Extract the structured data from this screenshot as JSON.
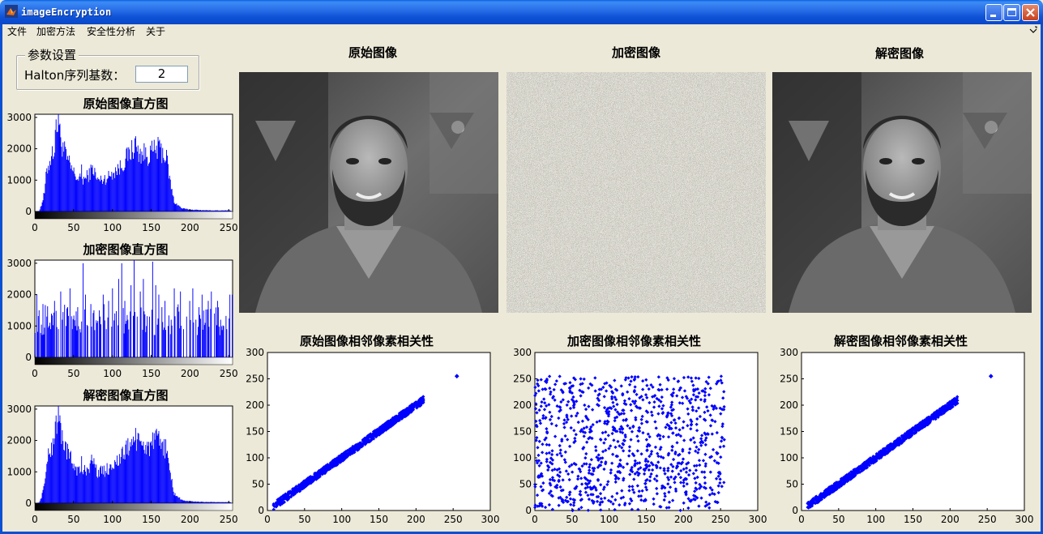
{
  "window": {
    "title": "imageEncryption",
    "controls": [
      "minimize",
      "maximize",
      "close"
    ]
  },
  "menu": {
    "items": [
      "文件",
      "加密方法",
      "安全性分析",
      "关于"
    ],
    "overflow_icon": "chevron-icon"
  },
  "params": {
    "legend": "参数设置",
    "halton_label": "Halton序列基数：",
    "halton_value": "2"
  },
  "images": {
    "original_title": "原始图像",
    "encrypted_title": "加密图像",
    "decrypted_title": "解密图像"
  },
  "colors": {
    "series": "#0000ff",
    "background": "#ece9d8",
    "titlebar": "#0a48c8"
  },
  "chart_data": [
    {
      "id": "hist-original",
      "type": "bar",
      "title": "原始图像直方图",
      "xlim": [
        0,
        255
      ],
      "ylim": [
        0,
        3100
      ],
      "xticks": [
        0,
        50,
        100,
        150,
        200,
        250
      ],
      "yticks": [
        0,
        1000,
        2000,
        3000
      ],
      "bins": 256,
      "envelope": [
        [
          0,
          0
        ],
        [
          5,
          20
        ],
        [
          8,
          200
        ],
        [
          12,
          600
        ],
        [
          15,
          1300
        ],
        [
          20,
          1700
        ],
        [
          25,
          2100
        ],
        [
          28,
          2700
        ],
        [
          30,
          2900
        ],
        [
          33,
          2300
        ],
        [
          38,
          1900
        ],
        [
          42,
          1600
        ],
        [
          48,
          1300
        ],
        [
          55,
          1050
        ],
        [
          60,
          1000
        ],
        [
          65,
          1050
        ],
        [
          70,
          1200
        ],
        [
          75,
          1400
        ],
        [
          80,
          1000
        ],
        [
          85,
          1000
        ],
        [
          95,
          1100
        ],
        [
          100,
          1250
        ],
        [
          110,
          1400
        ],
        [
          118,
          1700
        ],
        [
          124,
          1900
        ],
        [
          128,
          2100
        ],
        [
          132,
          1900
        ],
        [
          138,
          1850
        ],
        [
          145,
          1800
        ],
        [
          152,
          1900
        ],
        [
          158,
          2000
        ],
        [
          165,
          1900
        ],
        [
          170,
          1700
        ],
        [
          175,
          900
        ],
        [
          180,
          300
        ],
        [
          190,
          100
        ],
        [
          200,
          60
        ],
        [
          220,
          40
        ],
        [
          240,
          30
        ],
        [
          252,
          40
        ],
        [
          255,
          0
        ]
      ],
      "spikes": [
        [
          30,
          3100
        ],
        [
          32,
          2800
        ],
        [
          26,
          2600
        ],
        [
          60,
          1500
        ],
        [
          118,
          2000
        ],
        [
          130,
          2400
        ],
        [
          162,
          2050
        ]
      ]
    },
    {
      "id": "hist-encrypted",
      "type": "bar",
      "title": "加密图像直方图",
      "xlim": [
        0,
        255
      ],
      "ylim": [
        0,
        3100
      ],
      "xticks": [
        0,
        50,
        100,
        150,
        200,
        250
      ],
      "yticks": [
        0,
        1000,
        2000,
        3000
      ],
      "bins": 256,
      "baseline": 0,
      "spikes": [
        [
          2,
          2000
        ],
        [
          5,
          1500
        ],
        [
          10,
          1700
        ],
        [
          15,
          1300
        ],
        [
          18,
          1000
        ],
        [
          20,
          900
        ],
        [
          25,
          1800
        ],
        [
          30,
          900
        ],
        [
          33,
          2100
        ],
        [
          35,
          1200
        ],
        [
          40,
          1000
        ],
        [
          45,
          2200
        ],
        [
          48,
          900
        ],
        [
          52,
          1000
        ],
        [
          55,
          1600
        ],
        [
          58,
          900
        ],
        [
          62,
          3000
        ],
        [
          65,
          2000
        ],
        [
          68,
          1000
        ],
        [
          72,
          1700
        ],
        [
          76,
          1500
        ],
        [
          80,
          1100
        ],
        [
          84,
          1300
        ],
        [
          88,
          2000
        ],
        [
          92,
          900
        ],
        [
          95,
          1800
        ],
        [
          100,
          2200
        ],
        [
          103,
          1400
        ],
        [
          108,
          2500
        ],
        [
          112,
          3000
        ],
        [
          116,
          1800
        ],
        [
          120,
          1200
        ],
        [
          124,
          2300
        ],
        [
          128,
          3100
        ],
        [
          132,
          1300
        ],
        [
          136,
          2100
        ],
        [
          140,
          2500
        ],
        [
          144,
          1000
        ],
        [
          148,
          1300
        ],
        [
          152,
          3050
        ],
        [
          156,
          2300
        ],
        [
          160,
          2000
        ],
        [
          164,
          1600
        ],
        [
          168,
          1800
        ],
        [
          172,
          1000
        ],
        [
          176,
          1200
        ],
        [
          180,
          2200
        ],
        [
          184,
          1600
        ],
        [
          188,
          2100
        ],
        [
          192,
          900
        ],
        [
          196,
          1300
        ],
        [
          200,
          1800
        ],
        [
          204,
          2200
        ],
        [
          208,
          1200
        ],
        [
          212,
          1600
        ],
        [
          216,
          2000
        ],
        [
          220,
          1100
        ],
        [
          224,
          1800
        ],
        [
          228,
          2100
        ],
        [
          232,
          1400
        ],
        [
          236,
          1800
        ],
        [
          240,
          1200
        ],
        [
          244,
          1000
        ],
        [
          248,
          900
        ],
        [
          252,
          2000
        ],
        [
          255,
          2000
        ]
      ]
    },
    {
      "id": "hist-decrypted",
      "type": "bar",
      "title": "解密图像直方图",
      "xlim": [
        0,
        255
      ],
      "ylim": [
        0,
        3100
      ],
      "xticks": [
        0,
        50,
        100,
        150,
        200,
        250
      ],
      "yticks": [
        0,
        1000,
        2000,
        3000
      ],
      "bins": 256,
      "envelope": [
        [
          0,
          0
        ],
        [
          5,
          20
        ],
        [
          8,
          200
        ],
        [
          12,
          600
        ],
        [
          15,
          1300
        ],
        [
          20,
          1700
        ],
        [
          25,
          2100
        ],
        [
          28,
          2700
        ],
        [
          30,
          2900
        ],
        [
          33,
          2300
        ],
        [
          38,
          1900
        ],
        [
          42,
          1600
        ],
        [
          48,
          1300
        ],
        [
          55,
          1050
        ],
        [
          60,
          1000
        ],
        [
          65,
          1050
        ],
        [
          70,
          1200
        ],
        [
          75,
          1400
        ],
        [
          80,
          1000
        ],
        [
          85,
          1000
        ],
        [
          95,
          1100
        ],
        [
          100,
          1250
        ],
        [
          110,
          1400
        ],
        [
          118,
          1700
        ],
        [
          124,
          1900
        ],
        [
          128,
          2100
        ],
        [
          132,
          1900
        ],
        [
          138,
          1850
        ],
        [
          145,
          1800
        ],
        [
          152,
          1900
        ],
        [
          158,
          2000
        ],
        [
          165,
          1900
        ],
        [
          170,
          1700
        ],
        [
          175,
          900
        ],
        [
          180,
          300
        ],
        [
          190,
          100
        ],
        [
          200,
          60
        ],
        [
          220,
          40
        ],
        [
          240,
          30
        ],
        [
          252,
          40
        ],
        [
          255,
          0
        ]
      ],
      "spikes": [
        [
          30,
          3100
        ],
        [
          32,
          2800
        ],
        [
          26,
          2600
        ],
        [
          60,
          1500
        ],
        [
          118,
          2000
        ],
        [
          130,
          2400
        ],
        [
          162,
          2050
        ]
      ]
    },
    {
      "id": "corr-original",
      "type": "scatter",
      "title": "原始图像相邻像素相关性",
      "xlim": [
        0,
        300
      ],
      "ylim": [
        0,
        300
      ],
      "xticks": [
        0,
        50,
        100,
        150,
        200,
        250,
        300
      ],
      "yticks": [
        0,
        50,
        100,
        150,
        200,
        250,
        300
      ],
      "pattern": "diagonal",
      "range": [
        8,
        210
      ],
      "outlier": [
        255,
        255
      ],
      "count": 1000
    },
    {
      "id": "corr-encrypted",
      "type": "scatter",
      "title": "加密图像相邻像素相关性",
      "xlim": [
        0,
        300
      ],
      "ylim": [
        0,
        300
      ],
      "xticks": [
        0,
        50,
        100,
        150,
        200,
        250,
        300
      ],
      "yticks": [
        0,
        50,
        100,
        150,
        200,
        250,
        300
      ],
      "pattern": "uniform",
      "range": [
        0,
        255
      ],
      "count": 1000
    },
    {
      "id": "corr-decrypted",
      "type": "scatter",
      "title": "解密图像相邻像素相关性",
      "xlim": [
        0,
        300
      ],
      "ylim": [
        0,
        300
      ],
      "xticks": [
        0,
        50,
        100,
        150,
        200,
        250,
        300
      ],
      "yticks": [
        0,
        50,
        100,
        150,
        200,
        250,
        300
      ],
      "pattern": "diagonal",
      "range": [
        8,
        210
      ],
      "outlier": [
        255,
        255
      ],
      "count": 1000
    }
  ]
}
